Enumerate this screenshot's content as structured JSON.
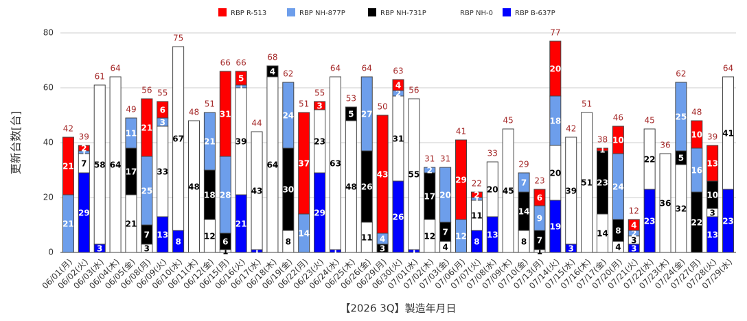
{
  "chart_data": {
    "type": "bar",
    "stacked": true,
    "y_label": "更新台数[台]",
    "x_label": "【2026 3Q】製造年月日",
    "ylim": [
      0,
      80
    ],
    "yticks": [
      0,
      20,
      40,
      60,
      80
    ],
    "grid": true,
    "legend": "top",
    "categories": [
      "06/01(月)",
      "06/02(火)",
      "06/03(水)",
      "06/04(木)",
      "06/05(金)",
      "06/08(月)",
      "06/09(火)",
      "06/10(水)",
      "06/11(木)",
      "06/12(金)",
      "06/15(月)",
      "06/16(火)",
      "06/17(水)",
      "06/18(木)",
      "06/19(金)",
      "06/22(月)",
      "06/23(火)",
      "06/24(水)",
      "06/25(木)",
      "06/26(金)",
      "06/29(月)",
      "06/30(火)",
      "07/01(水)",
      "07/02(木)",
      "07/03(金)",
      "07/06(月)",
      "07/07(火)",
      "07/08(水)",
      "07/09(木)",
      "07/10(金)",
      "07/13(月)",
      "07/14(火)",
      "07/15(水)",
      "07/16(木)",
      "07/17(金)",
      "07/20(月)",
      "07/21(火)",
      "07/22(水)",
      "07/23(木)",
      "07/24(金)",
      "07/27(月)",
      "07/28(火)",
      "07/29(水)"
    ],
    "series": [
      {
        "name": "RBP B-637P",
        "color": "#0000ff",
        "values": [
          0,
          29,
          3,
          0,
          0,
          0,
          13,
          8,
          0,
          0,
          0,
          21,
          1,
          0,
          0,
          0,
          29,
          1,
          0,
          0,
          0,
          26,
          1,
          0,
          0,
          0,
          8,
          13,
          0,
          0,
          0,
          19,
          3,
          0,
          0,
          0,
          3,
          23,
          0,
          0,
          0,
          13,
          23
        ]
      },
      {
        "name": "RBP NH-0",
        "color": "#ffffff",
        "values": [
          0,
          7,
          58,
          64,
          21,
          3,
          33,
          67,
          48,
          12,
          1,
          39,
          43,
          64,
          8,
          0,
          23,
          63,
          48,
          11,
          0,
          31,
          55,
          12,
          4,
          0,
          11,
          20,
          45,
          8,
          1,
          20,
          39,
          51,
          14,
          4,
          3,
          22,
          36,
          32,
          0,
          3,
          41
        ]
      },
      {
        "name": "RBP NH-731P",
        "color": "#000000",
        "values": [
          0,
          0,
          0,
          0,
          17,
          7,
          0,
          0,
          0,
          18,
          6,
          0,
          0,
          4,
          30,
          0,
          0,
          0,
          5,
          26,
          3,
          0,
          0,
          17,
          7,
          0,
          0,
          0,
          0,
          14,
          7,
          0,
          0,
          0,
          23,
          8,
          0,
          0,
          0,
          5,
          22,
          10,
          0
        ]
      },
      {
        "name": "RBP NH-877P",
        "color": "#6d9eeb",
        "values": [
          21,
          1,
          0,
          0,
          11,
          25,
          3,
          0,
          0,
          21,
          28,
          1,
          0,
          0,
          24,
          14,
          0,
          0,
          0,
          27,
          4,
          2,
          0,
          2,
          20,
          12,
          1,
          0,
          0,
          7,
          9,
          18,
          0,
          0,
          0,
          24,
          2,
          0,
          0,
          25,
          16,
          0,
          0
        ]
      },
      {
        "name": "RBP R-513",
        "color": "#ff0000",
        "values": [
          21,
          2,
          0,
          0,
          0,
          21,
          6,
          0,
          0,
          0,
          31,
          5,
          0,
          0,
          0,
          37,
          3,
          0,
          0,
          0,
          43,
          4,
          0,
          0,
          0,
          29,
          2,
          0,
          0,
          0,
          6,
          20,
          0,
          0,
          1,
          10,
          4,
          0,
          0,
          0,
          10,
          13,
          0
        ]
      }
    ],
    "legend_order": [
      4,
      3,
      2,
      1,
      0
    ],
    "totals": [
      42,
      39,
      61,
      64,
      49,
      56,
      55,
      75,
      48,
      51,
      66,
      66,
      44,
      68,
      62,
      51,
      55,
      64,
      53,
      64,
      50,
      63,
      56,
      31,
      31,
      41,
      22,
      33,
      45,
      29,
      23,
      77,
      42,
      51,
      38,
      46,
      12,
      45,
      36,
      62,
      48,
      39,
      64
    ]
  }
}
